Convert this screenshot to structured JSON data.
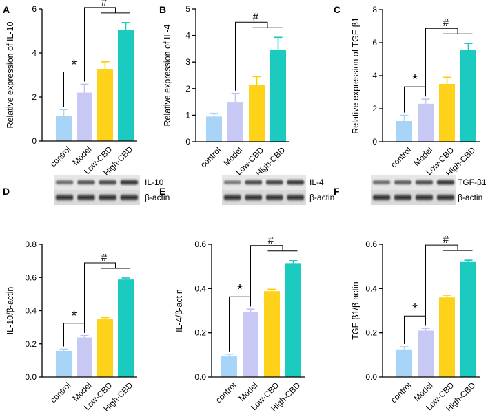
{
  "colors": {
    "control": "#a8d4f8",
    "Model": "#c8c8f4",
    "Low-CBD": "#ffd21a",
    "High-CBD": "#1ccbc0",
    "control_err": "#a8d4f8",
    "Model_err": "#c0c0f2",
    "Low-CBD_err": "#ffcc00",
    "High-CBD_err": "#18c6bb"
  },
  "chart_data": [
    {
      "id": "A",
      "type": "bar",
      "letter": "A",
      "categories": [
        "control",
        "Model",
        "Low-CBD",
        "High-CBD"
      ],
      "values": [
        1.15,
        2.2,
        3.25,
        5.05
      ],
      "errors": [
        0.28,
        0.38,
        0.35,
        0.33
      ],
      "ylabel": "Relative expression of IL-10",
      "ylim": [
        0,
        6
      ],
      "yticks": [
        0,
        2,
        4,
        6
      ],
      "significance": [
        {
          "symbol": "*",
          "from": 0,
          "to": [
            1
          ]
        },
        {
          "symbol": "#",
          "from": 1,
          "to": [
            2,
            3
          ]
        }
      ]
    },
    {
      "id": "B",
      "type": "bar",
      "letter": "B",
      "categories": [
        "control",
        "Model",
        "Low-CBD",
        "High-CBD"
      ],
      "values": [
        0.95,
        1.5,
        2.15,
        3.45
      ],
      "errors": [
        0.12,
        0.32,
        0.3,
        0.48
      ],
      "ylabel": "Relative  expression of IL-4",
      "ylim": [
        0,
        5
      ],
      "yticks": [
        0,
        1,
        2,
        3,
        4,
        5
      ],
      "significance": [
        {
          "symbol": "#",
          "from": 1,
          "to": [
            2,
            3
          ]
        }
      ]
    },
    {
      "id": "C",
      "type": "bar",
      "letter": "C",
      "categories": [
        "control",
        "Model",
        "Low-CBD",
        "High-CBD"
      ],
      "values": [
        1.25,
        2.3,
        3.5,
        5.55
      ],
      "errors": [
        0.35,
        0.28,
        0.4,
        0.4
      ],
      "ylabel": "Relative  expression of TGF-β1",
      "ylim": [
        0,
        8
      ],
      "yticks": [
        0,
        2,
        4,
        6,
        8
      ],
      "significance": [
        {
          "symbol": "*",
          "from": 0,
          "to": [
            1
          ]
        },
        {
          "symbol": "#",
          "from": 1,
          "to": [
            2,
            3
          ]
        }
      ]
    },
    {
      "id": "D",
      "type": "bar",
      "letter": "D",
      "categories": [
        "control",
        "Model",
        "Low-CBD",
        "High-CBD"
      ],
      "values": [
        0.158,
        0.238,
        0.348,
        0.588
      ],
      "errors": [
        0.01,
        0.012,
        0.01,
        0.009
      ],
      "ylabel": "IL-10/β-actin",
      "ylim": [
        0,
        0.8
      ],
      "yticks": [
        0.0,
        0.2,
        0.4,
        0.6,
        0.8
      ],
      "tick_decimals": 1,
      "significance": [
        {
          "symbol": "*",
          "from": 0,
          "to": [
            1
          ]
        },
        {
          "symbol": "#",
          "from": 1,
          "to": [
            2,
            3
          ]
        }
      ],
      "blot_labels": [
        "IL-10",
        "β-actin"
      ]
    },
    {
      "id": "E",
      "type": "bar",
      "letter": "E",
      "categories": [
        "control",
        "Model",
        "Low-CBD",
        "High-CBD"
      ],
      "values": [
        0.093,
        0.295,
        0.388,
        0.515
      ],
      "errors": [
        0.01,
        0.012,
        0.009,
        0.011
      ],
      "ylabel": "IL-4/β-actin",
      "ylim": [
        0,
        0.6
      ],
      "yticks": [
        0.0,
        0.2,
        0.4,
        0.6
      ],
      "tick_decimals": 1,
      "significance": [
        {
          "symbol": "*",
          "from": 0,
          "to": [
            1
          ]
        },
        {
          "symbol": "#",
          "from": 1,
          "to": [
            2,
            3
          ]
        }
      ],
      "blot_labels": [
        "IL-4",
        "β-actin"
      ]
    },
    {
      "id": "F",
      "type": "bar",
      "letter": "F",
      "categories": [
        "control",
        "Model",
        "Low-CBD",
        "High-CBD"
      ],
      "values": [
        0.125,
        0.21,
        0.36,
        0.52
      ],
      "errors": [
        0.012,
        0.01,
        0.01,
        0.008
      ],
      "ylabel": "TGF-β1/β-actin",
      "ylim": [
        0,
        0.6
      ],
      "yticks": [
        0.0,
        0.2,
        0.4,
        0.6
      ],
      "tick_decimals": 1,
      "significance": [
        {
          "symbol": "*",
          "from": 0,
          "to": [
            1
          ]
        },
        {
          "symbol": "#",
          "from": 1,
          "to": [
            2,
            3
          ]
        }
      ],
      "blot_labels": [
        "TGF-β1",
        "β-actin"
      ]
    }
  ]
}
